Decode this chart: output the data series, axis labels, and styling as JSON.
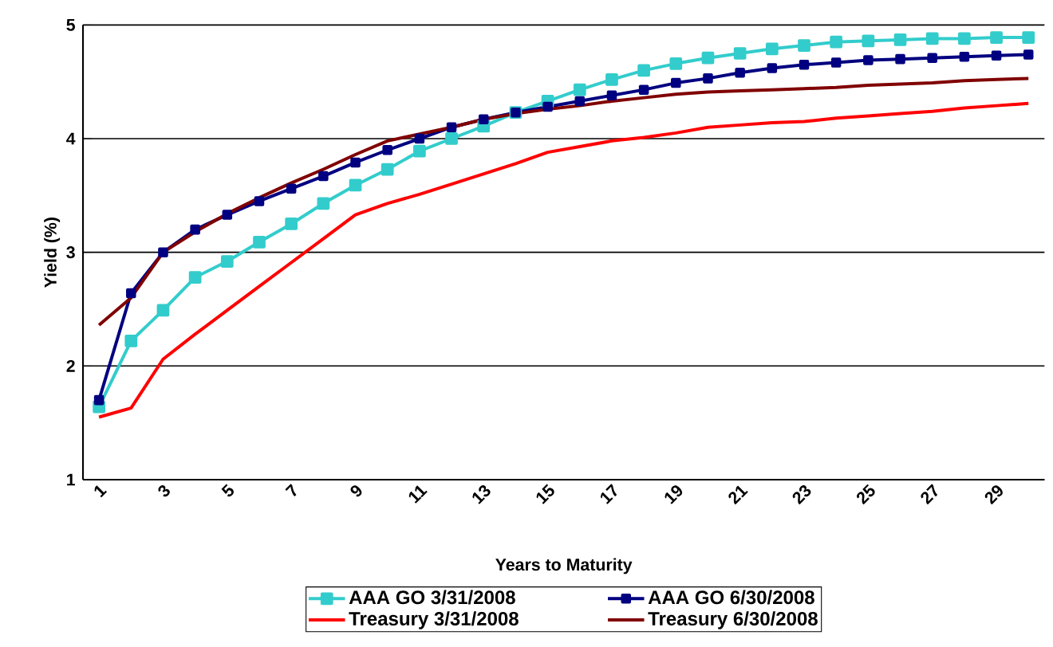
{
  "chart_data": {
    "type": "line",
    "xlabel": "Years to Maturity",
    "ylabel": "Yield (%)",
    "categories": [
      "1",
      null,
      "3",
      null,
      "5",
      null,
      "7",
      null,
      "9",
      null,
      "11",
      null,
      "13",
      null,
      "15",
      null,
      "17",
      null,
      "19",
      null,
      "21",
      null,
      "23",
      null,
      "25",
      null,
      "27",
      null,
      "29",
      null
    ],
    "ylim": [
      1,
      5
    ],
    "yticks": [
      1,
      2,
      3,
      4,
      5
    ],
    "grid": "y",
    "legend": "bottom",
    "series": [
      {
        "name": "AAA GO 3/31/2008",
        "color": "#33cccc",
        "marker": "square",
        "values": [
          1.64,
          2.22,
          2.49,
          2.78,
          2.92,
          3.09,
          3.25,
          3.43,
          3.59,
          3.73,
          3.89,
          4.0,
          4.11,
          4.23,
          4.33,
          4.43,
          4.52,
          4.6,
          4.66,
          4.71,
          4.75,
          4.79,
          4.82,
          4.85,
          4.86,
          4.87,
          4.88,
          4.88,
          4.89,
          4.89
        ]
      },
      {
        "name": "AAA GO 6/30/2008",
        "color": "#000080",
        "marker": "square",
        "values": [
          1.7,
          2.64,
          3.0,
          3.2,
          3.33,
          3.45,
          3.56,
          3.67,
          3.79,
          3.9,
          4.0,
          4.1,
          4.17,
          4.23,
          4.28,
          4.33,
          4.38,
          4.43,
          4.49,
          4.53,
          4.58,
          4.62,
          4.65,
          4.67,
          4.69,
          4.7,
          4.71,
          4.72,
          4.73,
          4.74
        ]
      },
      {
        "name": "Treasury 3/31/2008",
        "color": "#ff0000",
        "marker": "none",
        "values": [
          1.55,
          1.63,
          2.06,
          2.28,
          2.49,
          2.7,
          2.91,
          3.12,
          3.33,
          3.43,
          3.51,
          3.6,
          3.69,
          3.78,
          3.88,
          3.93,
          3.98,
          4.01,
          4.05,
          4.1,
          4.12,
          4.14,
          4.15,
          4.18,
          4.2,
          4.22,
          4.24,
          4.27,
          4.29,
          4.31
        ]
      },
      {
        "name": "Treasury 6/30/2008",
        "color": "#800000",
        "marker": "none",
        "values": [
          2.36,
          2.6,
          3.0,
          3.18,
          3.34,
          3.48,
          3.61,
          3.73,
          3.86,
          3.98,
          4.04,
          4.1,
          4.17,
          4.22,
          4.26,
          4.29,
          4.33,
          4.36,
          4.39,
          4.41,
          4.42,
          4.43,
          4.44,
          4.45,
          4.47,
          4.48,
          4.49,
          4.51,
          4.52,
          4.53
        ]
      }
    ]
  }
}
